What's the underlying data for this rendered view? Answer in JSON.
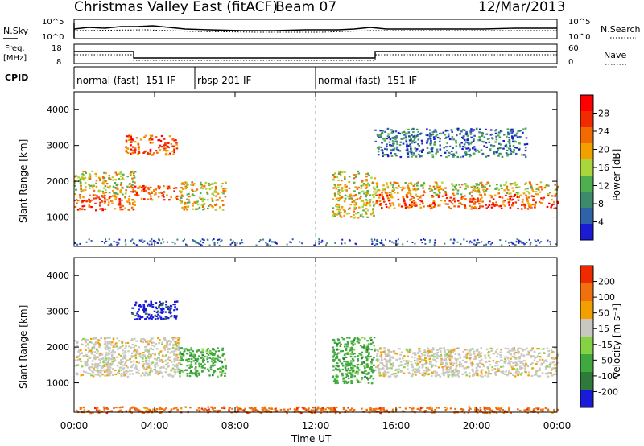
{
  "header": {
    "station": "Christmas Valley East (fitACF)",
    "beam": "Beam 07",
    "date": "12/Mar/2013"
  },
  "noise_panel": {
    "left_label": "N.Sky",
    "right_label": "N.Search",
    "left_ticks": [
      "10^5",
      "10^0"
    ],
    "right_ticks": [
      "10^5",
      "10^0"
    ]
  },
  "freq_panel": {
    "left_label_1": "Freq.",
    "left_label_2": "[MHz]",
    "right_label": "Nave",
    "left_ticks": [
      "18",
      "8"
    ],
    "right_ticks": [
      "60",
      "0"
    ]
  },
  "cpid": {
    "label": "CPID",
    "segments": [
      {
        "name": "normal (fast) -151 IF",
        "start_h": 0.0,
        "end_h": 6.0
      },
      {
        "name": "rbsp 201 IF",
        "start_h": 6.0,
        "end_h": 12.0
      },
      {
        "name": "normal (fast) -151 IF",
        "start_h": 12.0,
        "end_h": 24.0
      }
    ]
  },
  "x_axis": {
    "label": "Time UT",
    "ticks": [
      "00:00",
      "04:00",
      "08:00",
      "12:00",
      "16:00",
      "20:00",
      "00:00"
    ]
  },
  "power_panel": {
    "ylabel": "Slant Range [km]",
    "yticks": [
      "4000",
      "3000",
      "2000",
      "1000"
    ],
    "colorbar_label": "Power [dB]",
    "colorbar_ticks": [
      "28",
      "24",
      "20",
      "16",
      "12",
      "8",
      "4"
    ]
  },
  "velocity_panel": {
    "ylabel": "Slant Range [km]",
    "yticks": [
      "4000",
      "3000",
      "2000",
      "1000"
    ],
    "colorbar_label": "Velocity [m s⁻¹]",
    "colorbar_ticks": [
      "200",
      "100",
      "50",
      "15",
      "-15",
      "-50",
      "-100",
      "-200"
    ]
  },
  "colors": {
    "power_scale": [
      "#1b1bd4",
      "#2e63a8",
      "#3d8a6c",
      "#4fae4f",
      "#a8d63c",
      "#f2a000",
      "#f36a00",
      "#f22a00",
      "#ff0000"
    ],
    "velocity_scale": [
      "#1a1ad9",
      "#2e7a3a",
      "#3fa83f",
      "#86d245",
      "#c8c8c0",
      "#f2a000",
      "#f07010",
      "#ef2a00"
    ]
  },
  "chart_data": {
    "type": "heatmap",
    "x_range_hours": [
      0,
      24
    ],
    "y_range_km": [
      180,
      4500
    ],
    "power_regions": [
      {
        "t0": 0.0,
        "t1": 3.0,
        "r0": 1200,
        "r1": 1650,
        "level": "high"
      },
      {
        "t0": 0.0,
        "t1": 3.0,
        "r0": 1650,
        "r1": 2300,
        "level": "medium"
      },
      {
        "t0": 2.5,
        "t1": 5.1,
        "r0": 2750,
        "r1": 3300,
        "level": "high"
      },
      {
        "t0": 2.8,
        "t1": 5.1,
        "r0": 1500,
        "r1": 1900,
        "level": "high"
      },
      {
        "t0": 5.2,
        "t1": 7.5,
        "r0": 1200,
        "r1": 2000,
        "level": "medium"
      },
      {
        "t0": 12.8,
        "t1": 14.9,
        "r0": 1000,
        "r1": 2300,
        "level": "medium"
      },
      {
        "t0": 14.9,
        "t1": 24.0,
        "r0": 1250,
        "r1": 1650,
        "level": "high"
      },
      {
        "t0": 14.9,
        "t1": 24.0,
        "r0": 1650,
        "r1": 2000,
        "level": "medium"
      },
      {
        "t0": 14.9,
        "t1": 22.5,
        "r0": 2700,
        "r1": 3500,
        "level": "low"
      }
    ],
    "velocity_regions": [
      {
        "t0": 2.8,
        "t1": 5.1,
        "r0": 2800,
        "r1": 3300,
        "velocity": 200
      },
      {
        "t0": 0.0,
        "t1": 5.2,
        "r0": 1200,
        "r1": 2300,
        "velocity": 0
      },
      {
        "t0": 5.2,
        "t1": 7.5,
        "r0": 1200,
        "r1": 2000,
        "velocity": 50
      },
      {
        "t0": 14.9,
        "t1": 24.0,
        "r0": 1200,
        "r1": 2000,
        "velocity": 0
      },
      {
        "t0": 12.8,
        "t1": 14.9,
        "r0": 1000,
        "r1": 2300,
        "velocity": 50
      },
      {
        "t0": 0.0,
        "t1": 24.0,
        "r0": 180,
        "r1": 350,
        "velocity": -50
      }
    ]
  }
}
